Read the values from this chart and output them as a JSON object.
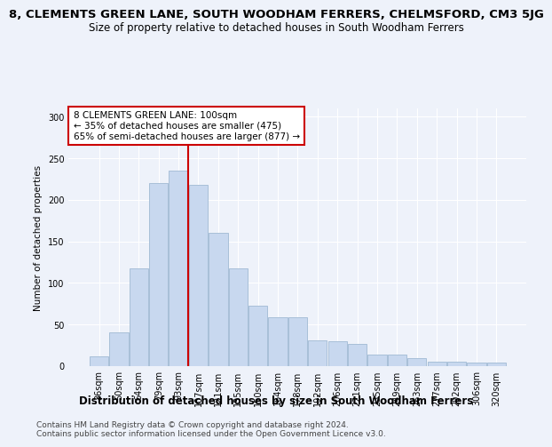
{
  "title": "8, CLEMENTS GREEN LANE, SOUTH WOODHAM FERRERS, CHELMSFORD, CM3 5JG",
  "subtitle": "Size of property relative to detached houses in South Woodham Ferrers",
  "xlabel": "Distribution of detached houses by size in South Woodham Ferrers",
  "ylabel": "Number of detached properties",
  "categories": [
    "36sqm",
    "50sqm",
    "64sqm",
    "79sqm",
    "93sqm",
    "107sqm",
    "121sqm",
    "135sqm",
    "150sqm",
    "164sqm",
    "178sqm",
    "192sqm",
    "206sqm",
    "221sqm",
    "235sqm",
    "249sqm",
    "263sqm",
    "277sqm",
    "292sqm",
    "306sqm",
    "320sqm"
  ],
  "values": [
    12,
    41,
    118,
    220,
    235,
    218,
    160,
    118,
    73,
    59,
    59,
    31,
    30,
    27,
    14,
    14,
    10,
    5,
    5,
    4,
    4
  ],
  "bar_color": "#c8d8ef",
  "bar_edge_color": "#a8bfd8",
  "vline_x": 4.5,
  "vline_color": "#cc0000",
  "annotation_text": "8 CLEMENTS GREEN LANE: 100sqm\n← 35% of detached houses are smaller (475)\n65% of semi-detached houses are larger (877) →",
  "annotation_box_color": "#ffffff",
  "annotation_box_edge": "#cc0000",
  "ylim": [
    0,
    310
  ],
  "yticks": [
    0,
    50,
    100,
    150,
    200,
    250,
    300
  ],
  "footer1": "Contains HM Land Registry data © Crown copyright and database right 2024.",
  "footer2": "Contains public sector information licensed under the Open Government Licence v3.0.",
  "background_color": "#eef2fa",
  "plot_background": "#eef2fa",
  "title_fontsize": 9.5,
  "subtitle_fontsize": 8.5,
  "xlabel_fontsize": 8.5,
  "ylabel_fontsize": 7.5,
  "tick_fontsize": 7,
  "footer_fontsize": 6.5,
  "annot_fontsize": 7.5
}
